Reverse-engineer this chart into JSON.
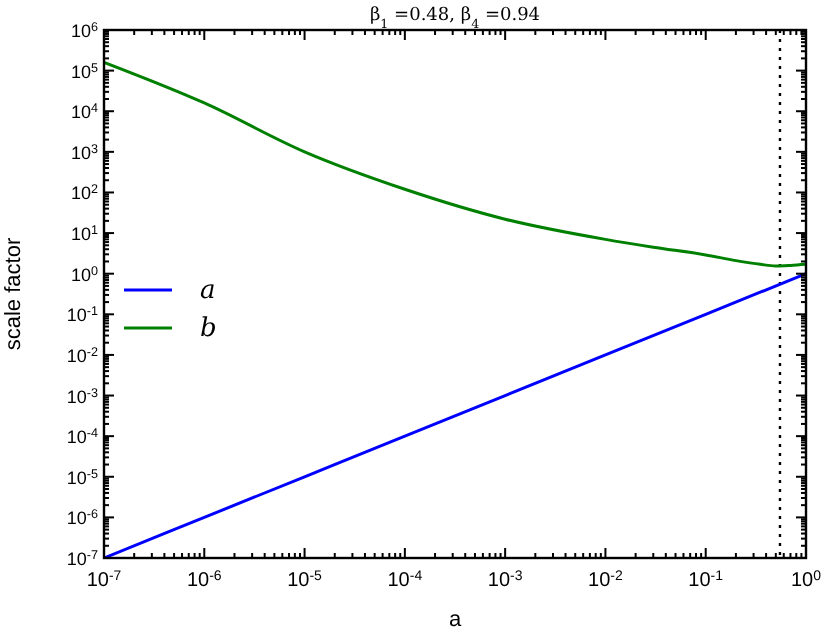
{
  "chart_data": {
    "type": "line",
    "title": "β$_{1}$ =0.48, β$_{4}$ =0.94",
    "xlabel": "a",
    "ylabel": "scale factor",
    "log": "xy",
    "grid": false,
    "legend": "left",
    "line_style": "solid",
    "xlim": [
      1e-07,
      1
    ],
    "ylim": [
      1e-07,
      1000000.0
    ],
    "xticks": [
      {
        "value": 1e-07,
        "label": "10$^{-7}$"
      },
      {
        "value": 1e-06,
        "label": "10$^{-6}$"
      },
      {
        "value": 1e-05,
        "label": "10$^{-5}$"
      },
      {
        "value": 0.0001,
        "label": "10$^{-4}$"
      },
      {
        "value": 0.001,
        "label": "10$^{-3}$"
      },
      {
        "value": 0.01,
        "label": "10$^{-2}$"
      },
      {
        "value": 0.1,
        "label": "10$^{-1}$"
      },
      {
        "value": 1,
        "label": "10$^{0}$"
      }
    ],
    "yticks": [
      {
        "value": 1e-07,
        "label": "10$^{-7}$"
      },
      {
        "value": 1e-06,
        "label": "10$^{-6}$"
      },
      {
        "value": 1e-05,
        "label": "10$^{-5}$"
      },
      {
        "value": 0.0001,
        "label": "10$^{-4}$"
      },
      {
        "value": 0.001,
        "label": "10$^{-3}$"
      },
      {
        "value": 0.01,
        "label": "10$^{-2}$"
      },
      {
        "value": 0.1,
        "label": "10$^{-1}$"
      },
      {
        "value": 1,
        "label": "10$^{0}$"
      },
      {
        "value": 10,
        "label": "10$^{1}$"
      },
      {
        "value": 100,
        "label": "10$^{2}$"
      },
      {
        "value": 1000,
        "label": "10$^{3}$"
      },
      {
        "value": 10000,
        "label": "10$^{4}$"
      },
      {
        "value": 100000,
        "label": "10$^{5}$"
      },
      {
        "value": 1000000,
        "label": "10$^{6}$"
      }
    ],
    "series": [
      {
        "name": "a",
        "color": "#0000ff",
        "x": [
          1e-07,
          1e-06,
          1e-05,
          0.0001,
          0.001,
          0.01,
          0.1,
          1
        ],
        "values": [
          1e-07,
          1e-06,
          1e-05,
          0.0001,
          0.001,
          0.01,
          0.1,
          1
        ]
      },
      {
        "name": "b",
        "color": "#008000",
        "x": [
          1e-07,
          1e-06,
          1e-05,
          0.0001,
          0.001,
          0.01,
          0.03,
          0.1,
          0.2,
          0.35,
          0.5,
          0.7,
          1
        ],
        "values": [
          160000,
          16000,
          1000,
          120,
          22,
          7,
          4.5,
          2.9,
          2.1,
          1.7,
          1.55,
          1.6,
          1.7
        ]
      }
    ],
    "ref_lines": [
      {
        "axis": "x",
        "value": 0.55,
        "line_style": "dotted",
        "color": "#000000"
      }
    ]
  }
}
